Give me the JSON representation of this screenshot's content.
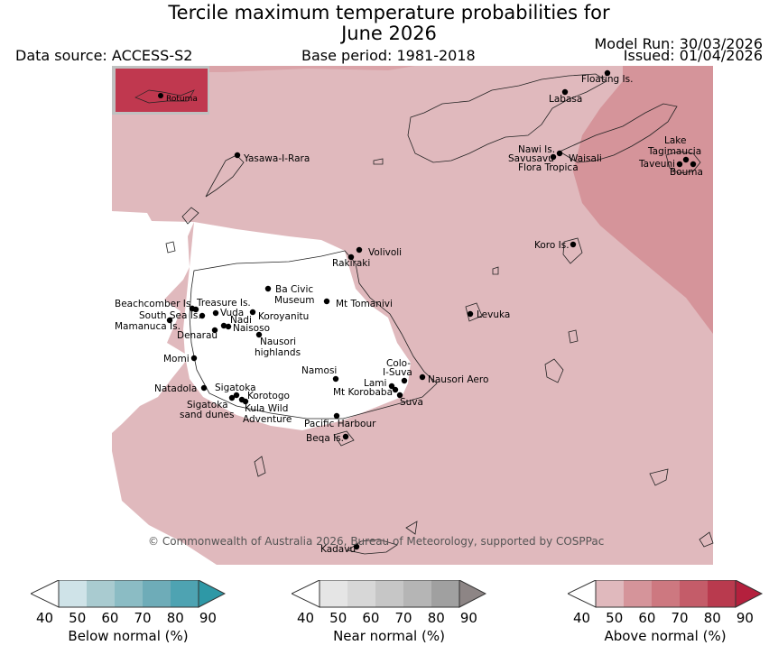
{
  "header": {
    "title_line1": "Tercile maximum temperature probabilities for",
    "title_line2": "June 2026",
    "data_source": "Data source: ACCESS-S2",
    "base_period": "Base period: 1981-2018",
    "model_run": "Model Run: 30/03/2026",
    "issued": "Issued: 01/04/2026"
  },
  "map": {
    "inset_label": "Rotuma",
    "copyright": "© Commonwealth of Australia 2026, Bureau of Meteorology, supported by COSPPac",
    "places": [
      "Floating Is.",
      "Labasa",
      "Yasawa-I-Rara",
      "Nawi Is.",
      "Savusavu",
      "Waisali",
      "Flora Tropica",
      "Lake",
      "Tagimaucia",
      "Taveuni",
      "Bouma",
      "Koro Is.",
      "Volivoli",
      "Rakiraki",
      "Beachcomber Is.",
      "Treasure Is.",
      "Ba Civic",
      "Museum",
      "Mt Tomanivi",
      "South Sea Is.",
      "Vuda",
      "Koroyanitu",
      "Nadi",
      "Mamanuca Is.",
      "Naisoso",
      "Denarau",
      "Levuka",
      "Nausori",
      "highlands",
      "Momi",
      "Namosi",
      "Colo-",
      "I-Suva",
      "Lami",
      "Nausori Aero",
      "Natadola",
      "Sigatoka",
      "Mt Korobaba",
      "Korotogo",
      "Suva",
      "Sigatoka",
      "sand dunes",
      "Kula Wild",
      "Adventure",
      "Pacific Harbour",
      "Beqa Is.",
      "Kadavu"
    ]
  },
  "legend": {
    "below": {
      "label": "Below normal (%)",
      "ticks": [
        "40",
        "50",
        "60",
        "70",
        "80",
        "90"
      ],
      "colors": [
        "#cfe3e8",
        "#a9cbd0",
        "#8bbcc4",
        "#6eacb8",
        "#4ea3b2",
        "#2e98a6"
      ]
    },
    "near": {
      "label": "Near normal (%)",
      "ticks": [
        "40",
        "50",
        "60",
        "70",
        "80",
        "90"
      ],
      "colors": [
        "#e5e5e5",
        "#d7d7d7",
        "#c6c6c6",
        "#b5b5b5",
        "#a0a0a0",
        "#8d8585"
      ]
    },
    "above": {
      "label": "Above normal (%)",
      "ticks": [
        "40",
        "50",
        "60",
        "70",
        "80",
        "90"
      ],
      "colors": [
        "#e0b9bd",
        "#d5949a",
        "#cd7880",
        "#c45c69",
        "#b93a4e",
        "#b4203d"
      ]
    }
  },
  "colors": {
    "above_40_50": "#e0b9bd",
    "above_50_60": "#d5949a",
    "inset": "#c0384f",
    "land_white": "#ffffff"
  }
}
